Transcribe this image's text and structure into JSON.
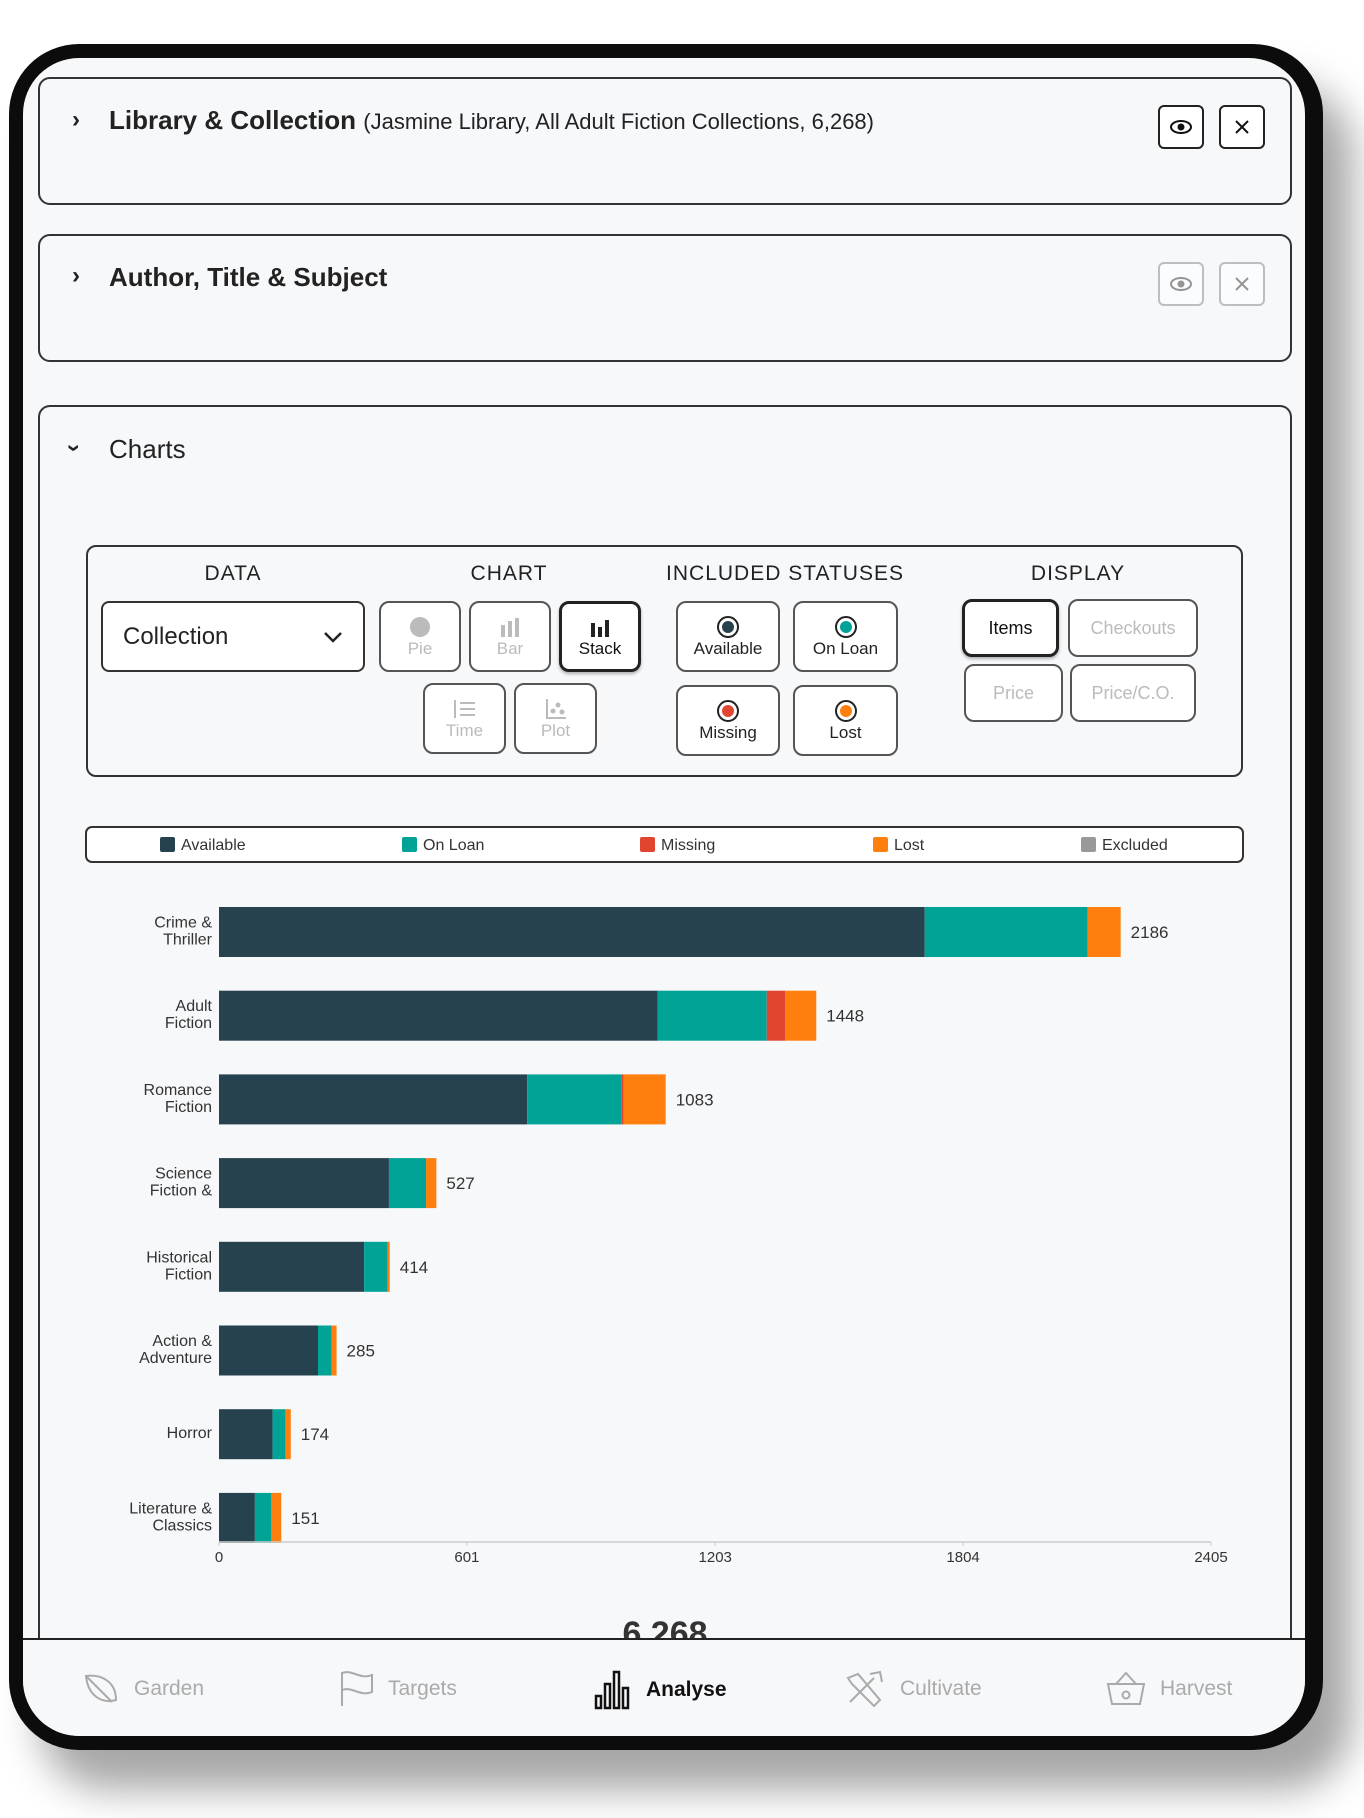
{
  "sections": [
    {
      "title": "Library & Collection",
      "detail": "(Jasmine Library, All Adult Fiction Collections, 6,268)"
    },
    {
      "title": "Author, Title & Subject"
    },
    {
      "title": "Charts"
    }
  ],
  "controls": {
    "data": {
      "label": "DATA",
      "selected": "Collection"
    },
    "chart": {
      "label": "CHART",
      "options": [
        "Pie",
        "Bar",
        "Stack",
        "Time",
        "Plot"
      ]
    },
    "statuses": {
      "label": "INCLUDED STATUSES",
      "options": [
        "Available",
        "On Loan",
        "Missing",
        "Lost"
      ]
    },
    "display": {
      "label": "DISPLAY",
      "options": [
        "Items",
        "Checkouts",
        "Price",
        "Price/C.O."
      ]
    }
  },
  "chart_data": {
    "type": "stacked_bar",
    "orientation": "horizontal",
    "categories": [
      "Crime & Thriller",
      "Adult Fiction",
      "Romance Fiction",
      "Science Fiction &",
      "Historical Fiction",
      "Action & Adventure",
      "Horror",
      "Literature & Classics"
    ],
    "series": [
      {
        "name": "Available",
        "color": "#27424f",
        "values": [
          1711,
          1063,
          747,
          412,
          352,
          240,
          130,
          87
        ]
      },
      {
        "name": "On Loan",
        "color": "#00a396",
        "values": [
          395,
          265,
          228,
          90,
          57,
          33,
          31,
          40
        ]
      },
      {
        "name": "Missing",
        "color": "#e2452f",
        "values": [
          0,
          45,
          6,
          0,
          0,
          0,
          0,
          0
        ]
      },
      {
        "name": "Lost",
        "color": "#ff7f0e",
        "values": [
          80,
          75,
          102,
          25,
          5,
          12,
          13,
          24
        ]
      },
      {
        "name": "Excluded",
        "color": "#999999",
        "values": [
          0,
          0,
          0,
          0,
          0,
          0,
          0,
          0
        ]
      }
    ],
    "totals": [
      2186,
      1448,
      1083,
      527,
      414,
      285,
      174,
      151
    ],
    "xlim": [
      0,
      2405
    ],
    "xticks": [
      0,
      601,
      1203,
      1804,
      2405
    ],
    "grand_total": "6,268"
  },
  "nav": [
    "Garden",
    "Targets",
    "Analyse",
    "Cultivate",
    "Harvest"
  ]
}
